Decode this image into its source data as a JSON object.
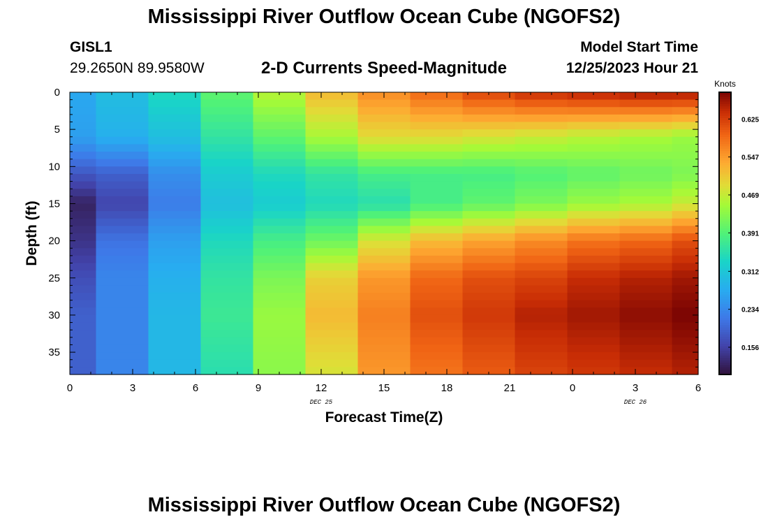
{
  "header": {
    "title": "Mississippi River Outflow Ocean Cube (NGOFS2)",
    "station_id": "GISL1",
    "station_coords": "29.2650N  89.9580W",
    "subtitle": "2-D Currents Speed-Magnitude",
    "model_start_label": "Model Start Time",
    "model_start_value": "12/25/2023 Hour 21"
  },
  "footer": {
    "title": "Mississippi River Outflow Ocean Cube (NGOFS2)"
  },
  "chart_data": {
    "type": "heatmap",
    "xlabel": "Forecast Time(Z)",
    "ylabel": "Depth (ft)",
    "x_tick_labels": [
      "0",
      "3",
      "6",
      "9",
      "12",
      "15",
      "18",
      "21",
      "0",
      "3",
      "6"
    ],
    "x_date_labels": [
      {
        "text": "DEC 25",
        "at_hour": 12
      },
      {
        "text": "DEC 26",
        "at_hour": 27
      }
    ],
    "xlim": [
      0,
      30
    ],
    "y_tick_labels": [
      "0",
      "5",
      "10",
      "15",
      "20",
      "25",
      "30",
      "35"
    ],
    "ylim": [
      0,
      38
    ],
    "y_inverted": true,
    "colorbar": {
      "unit_label": "Knots",
      "ticks": [
        "0.625",
        "0.547",
        "0.469",
        "0.391",
        "0.312",
        "0.234",
        "0.156"
      ],
      "range": [
        0.1,
        0.68
      ],
      "colormap": "turbo"
    },
    "time_hours": [
      0,
      2.5,
      5,
      7.5,
      10,
      12.5,
      15,
      17.5,
      20,
      22.5,
      25,
      27.5,
      30
    ],
    "time_edges": [
      0,
      1.25,
      3.75,
      6.25,
      8.75,
      11.25,
      13.75,
      16.25,
      18.75,
      21.25,
      23.75,
      26.25,
      28.75,
      30
    ],
    "depth_ft": [
      0,
      6,
      11,
      15,
      20,
      25,
      30,
      38
    ],
    "speed_knots": [
      [
        0.27,
        0.26,
        0.18,
        0.12,
        0.14,
        0.17,
        0.19,
        0.19
      ],
      [
        0.3,
        0.28,
        0.19,
        0.16,
        0.21,
        0.23,
        0.23,
        0.23
      ],
      [
        0.34,
        0.3,
        0.24,
        0.22,
        0.26,
        0.28,
        0.29,
        0.29
      ],
      [
        0.4,
        0.36,
        0.32,
        0.3,
        0.34,
        0.36,
        0.37,
        0.35
      ],
      [
        0.46,
        0.4,
        0.34,
        0.32,
        0.38,
        0.42,
        0.44,
        0.43
      ],
      [
        0.52,
        0.45,
        0.36,
        0.34,
        0.41,
        0.5,
        0.52,
        0.48
      ],
      [
        0.56,
        0.49,
        0.38,
        0.35,
        0.48,
        0.55,
        0.57,
        0.55
      ],
      [
        0.59,
        0.49,
        0.38,
        0.38,
        0.52,
        0.59,
        0.61,
        0.58
      ],
      [
        0.62,
        0.48,
        0.38,
        0.4,
        0.54,
        0.61,
        0.63,
        0.6
      ],
      [
        0.64,
        0.47,
        0.39,
        0.42,
        0.56,
        0.62,
        0.65,
        0.62
      ],
      [
        0.65,
        0.46,
        0.4,
        0.44,
        0.58,
        0.64,
        0.66,
        0.63
      ],
      [
        0.66,
        0.45,
        0.41,
        0.45,
        0.59,
        0.65,
        0.67,
        0.64
      ],
      [
        0.66,
        0.44,
        0.42,
        0.47,
        0.61,
        0.66,
        0.68,
        0.65
      ]
    ]
  }
}
